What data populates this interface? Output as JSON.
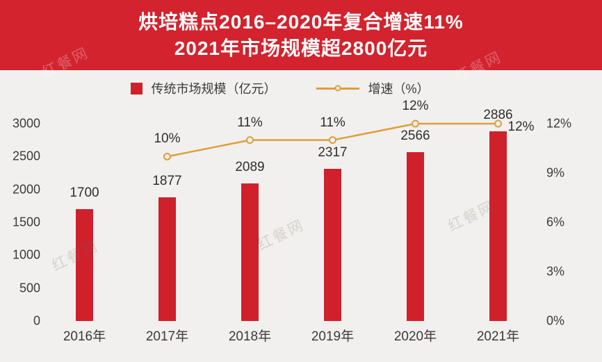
{
  "header": {
    "title_line1": "烘培糕点2016–2020年复合增速11%",
    "title_line2": "2021年市场规模超2800亿元",
    "bg_color": "#d2232e",
    "text_color": "#ffffff"
  },
  "legend": {
    "bar_label": "传统市场规模（亿元）",
    "line_label": "增速（%）"
  },
  "watermark": {
    "text": "红餐网"
  },
  "colors": {
    "background": "#f2f0ee",
    "bar": "#cf202c",
    "line": "#dd9e3c",
    "text": "#3a3a3a"
  },
  "chart_data": {
    "type": "bar",
    "title": "烘培糕点2016–2020年复合增速11% 2021年市场规模超2800亿元",
    "categories": [
      "2016年",
      "2017年",
      "2018年",
      "2019年",
      "2020年",
      "2021年"
    ],
    "series": [
      {
        "name": "传统市场规模（亿元）",
        "type": "bar",
        "axis": "left",
        "color": "#cf202c",
        "values": [
          1700,
          1877,
          2089,
          2317,
          2566,
          2886
        ]
      },
      {
        "name": "增速（%）",
        "type": "line",
        "axis": "right",
        "color": "#dd9e3c",
        "values": [
          null,
          10,
          11,
          11,
          12,
          12
        ],
        "point_labels": [
          "",
          "10%",
          "11%",
          "11%",
          "12%",
          "12%"
        ]
      }
    ],
    "left_axis": {
      "min": 0,
      "max": 3000,
      "ticks": [
        0,
        500,
        1000,
        1500,
        2000,
        2500,
        3000
      ]
    },
    "right_axis": {
      "min": 0,
      "max": 12,
      "ticks": [
        "0%",
        "3%",
        "6%",
        "9%",
        "12%"
      ]
    },
    "grid": false,
    "legend_position": "top"
  }
}
